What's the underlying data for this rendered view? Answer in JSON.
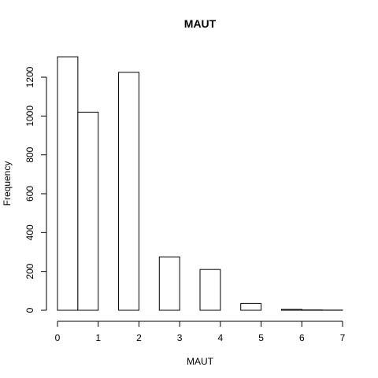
{
  "chart_data": {
    "type": "bar",
    "title": "MAUT",
    "xlabel": "MAUT",
    "ylabel": "Frequency",
    "bins": [
      [
        0,
        0.5
      ],
      [
        0.5,
        1
      ],
      [
        1,
        1.5
      ],
      [
        1.5,
        2
      ],
      [
        2,
        2.5
      ],
      [
        2.5,
        3
      ],
      [
        3,
        3.5
      ],
      [
        3.5,
        4
      ],
      [
        4,
        4.5
      ],
      [
        4.5,
        5
      ],
      [
        5,
        5.5
      ],
      [
        5.5,
        6
      ],
      [
        6,
        6.5
      ],
      [
        6.5,
        7
      ]
    ],
    "values": [
      1305,
      1020,
      0,
      1225,
      0,
      275,
      0,
      210,
      0,
      35,
      0,
      5,
      2,
      1
    ],
    "xticks": [
      "0",
      "1",
      "2",
      "3",
      "4",
      "5",
      "6",
      "7"
    ],
    "yticks": [
      "0",
      "200",
      "400",
      "600",
      "800",
      "1000",
      "1200"
    ],
    "xlim": [
      0,
      7
    ],
    "ylim": [
      0,
      1200
    ],
    "grid": false
  }
}
